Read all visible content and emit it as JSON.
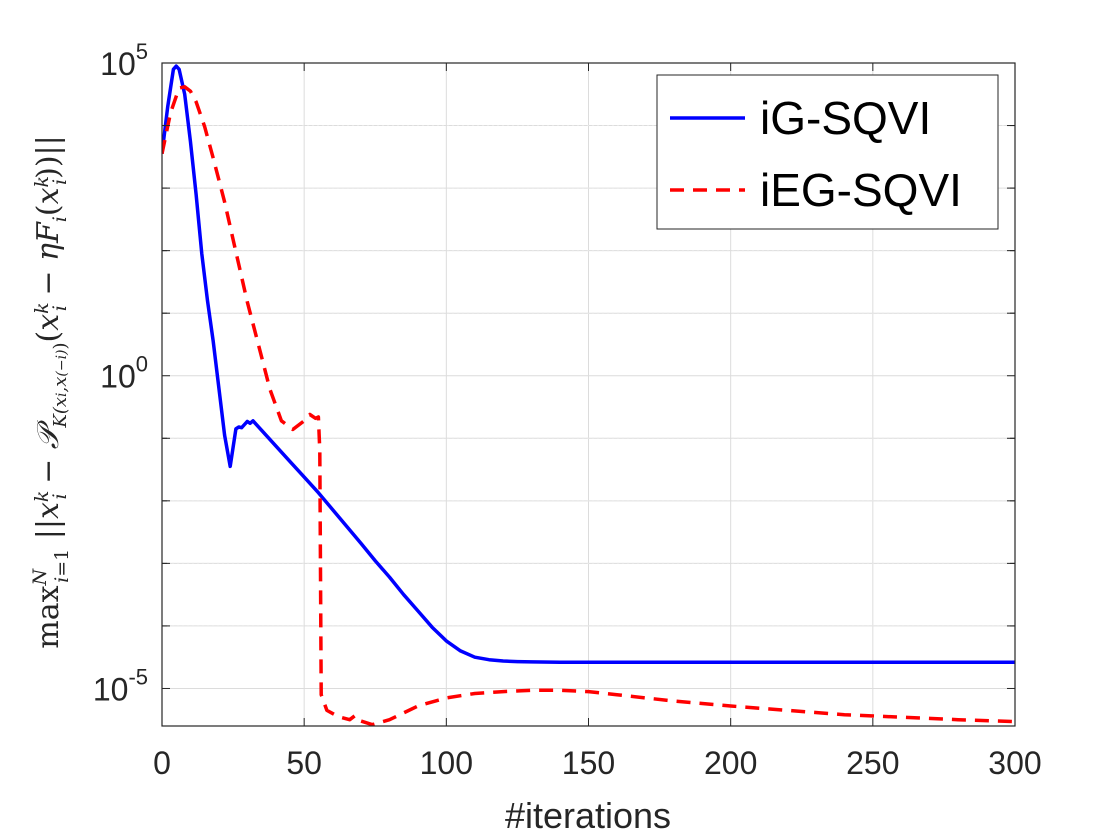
{
  "chart_data": {
    "type": "line",
    "title": "",
    "xlabel": "#iterations",
    "ylabel": "max_{i=1}^{N} ||x_i^k − P_{K(x_i^k, x_(−i)^k)}(x_i^k − ηF_i(x_i^k))||",
    "yscale": "log",
    "xlim": [
      0,
      300
    ],
    "ylim_log10": [
      -5.6,
      5
    ],
    "grid": true,
    "legend_position": "top-right",
    "x_ticks": [
      {
        "value": 0,
        "label": "0"
      },
      {
        "value": 50,
        "label": "50"
      },
      {
        "value": 100,
        "label": "100"
      },
      {
        "value": 150,
        "label": "150"
      },
      {
        "value": 200,
        "label": "200"
      },
      {
        "value": 250,
        "label": "250"
      },
      {
        "value": 300,
        "label": "300"
      }
    ],
    "y_ticks": [
      {
        "log10": 5,
        "base": "10",
        "exp": "5"
      },
      {
        "log10": 0,
        "base": "10",
        "exp": "0"
      },
      {
        "log10": -5,
        "base": "10",
        "exp": "-5"
      }
    ],
    "series": [
      {
        "name": "iG-SQVI",
        "color": "#0000ff",
        "dash": "solid",
        "x": [
          0,
          2,
          4,
          5,
          6,
          8,
          10,
          12,
          14,
          16,
          18,
          20,
          22,
          24,
          26,
          27,
          28,
          29,
          30,
          31,
          32,
          33,
          35,
          40,
          45,
          50,
          55,
          60,
          65,
          70,
          75,
          80,
          85,
          90,
          95,
          100,
          105,
          110,
          115,
          120,
          125,
          130,
          140,
          150,
          170,
          200,
          250,
          300
        ],
        "y_log10": [
          3.55,
          4.3,
          4.9,
          4.95,
          4.9,
          4.5,
          3.75,
          2.9,
          1.95,
          1.2,
          0.55,
          -0.2,
          -0.95,
          -1.45,
          -0.85,
          -0.82,
          -0.83,
          -0.78,
          -0.73,
          -0.76,
          -0.72,
          -0.77,
          -0.87,
          -1.12,
          -1.37,
          -1.62,
          -1.87,
          -2.14,
          -2.41,
          -2.68,
          -2.96,
          -3.22,
          -3.5,
          -3.76,
          -4.02,
          -4.24,
          -4.4,
          -4.5,
          -4.54,
          -4.56,
          -4.57,
          -4.575,
          -4.58,
          -4.58,
          -4.58,
          -4.58,
          -4.58,
          -4.58
        ]
      },
      {
        "name": "iEG-SQVI",
        "color": "#ff0000",
        "dash": "dashed",
        "x": [
          0,
          3,
          6,
          8,
          10,
          12,
          15,
          18,
          22,
          26,
          30,
          34,
          38,
          42,
          46,
          50,
          52,
          54,
          55,
          55.5,
          56,
          58,
          62,
          66,
          68,
          70,
          74,
          80,
          90,
          100,
          110,
          120,
          130,
          140,
          150,
          160,
          170,
          180,
          190,
          200,
          220,
          240,
          260,
          280,
          300
        ],
        "y_log10": [
          3.55,
          4.2,
          4.6,
          4.62,
          4.55,
          4.38,
          3.98,
          3.48,
          2.78,
          1.98,
          1.18,
          0.48,
          -0.22,
          -0.72,
          -0.86,
          -0.72,
          -0.62,
          -0.68,
          -0.66,
          -1.2,
          -5.1,
          -5.35,
          -5.45,
          -5.5,
          -5.43,
          -5.52,
          -5.58,
          -5.5,
          -5.28,
          -5.15,
          -5.08,
          -5.05,
          -5.03,
          -5.03,
          -5.05,
          -5.1,
          -5.15,
          -5.2,
          -5.24,
          -5.28,
          -5.35,
          -5.42,
          -5.46,
          -5.5,
          -5.53
        ]
      }
    ]
  }
}
